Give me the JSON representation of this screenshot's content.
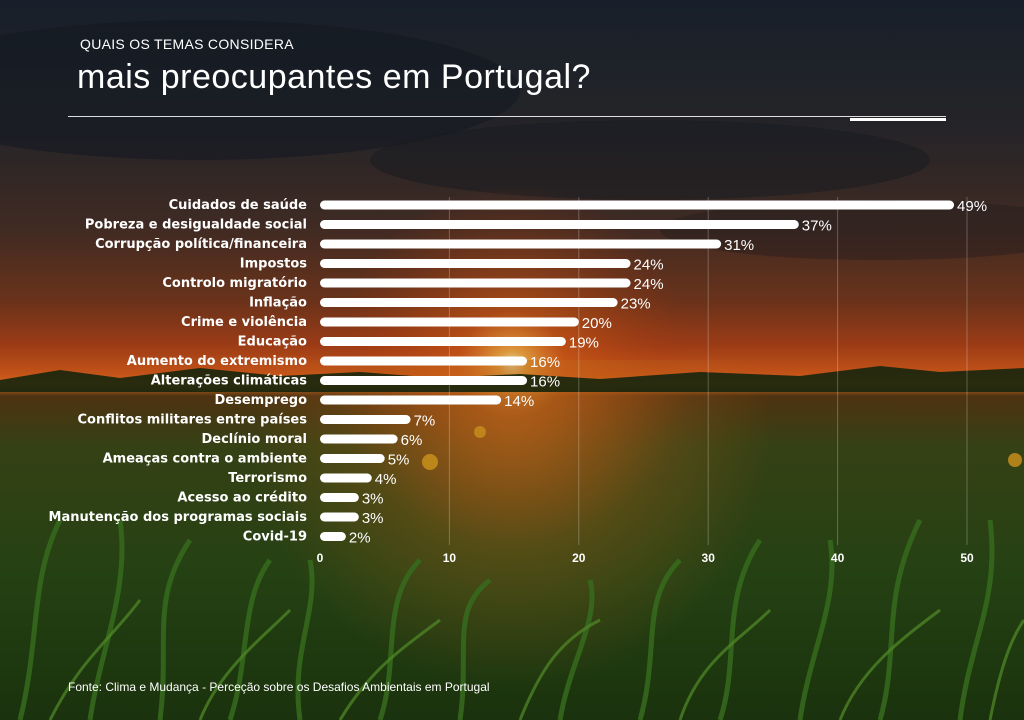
{
  "header": {
    "subtitle": "QUAIS OS TEMAS CONSIDERA",
    "title": "mais preocupantes em Portugal?"
  },
  "footer": {
    "source": "Fonte: Clima e Mudança - Perceção sobre os Desafios Ambientais em Portugal"
  },
  "colors": {
    "bar": "#ffffff",
    "label": "#ffffff",
    "sky_top": "#1c2633",
    "sky_mid": "#6b3a22",
    "horizon": "#f26a1b",
    "field": "#2f5a1c"
  },
  "chart_data": {
    "type": "bar",
    "orientation": "horizontal",
    "title": "mais preocupantes em Portugal?",
    "categories": [
      "Cuidados de saúde",
      "Pobreza e desigualdade social",
      "Corrupção política/financeira",
      "Impostos",
      "Controlo migratório",
      "Inflação",
      "Crime e violência",
      "Educação",
      "Aumento do extremismo",
      "Alterações climáticas",
      "Desemprego",
      "Conflitos militares entre países",
      "Declínio moral",
      "Ameaças contra o ambiente",
      "Terrorismo",
      "Acesso ao crédito",
      "Manutenção dos programas sociais",
      "Covid-19"
    ],
    "values": [
      49,
      37,
      31,
      24,
      24,
      23,
      20,
      19,
      16,
      16,
      14,
      7,
      6,
      5,
      4,
      3,
      3,
      2
    ],
    "value_labels": [
      "49%",
      "37%",
      "31%",
      "24%",
      "24%",
      "23%",
      "20%",
      "19%",
      "16%",
      "16%",
      "14%",
      "7%",
      "6%",
      "5%",
      "4%",
      "3%",
      "3%",
      "2%"
    ],
    "xlim": [
      0,
      50
    ],
    "xticks": [
      0,
      10,
      20,
      30,
      40,
      50
    ],
    "xtick_labels": [
      "0",
      "10",
      "20",
      "30",
      "40",
      "50"
    ],
    "xlabel": "",
    "ylabel": "",
    "grid": true
  }
}
